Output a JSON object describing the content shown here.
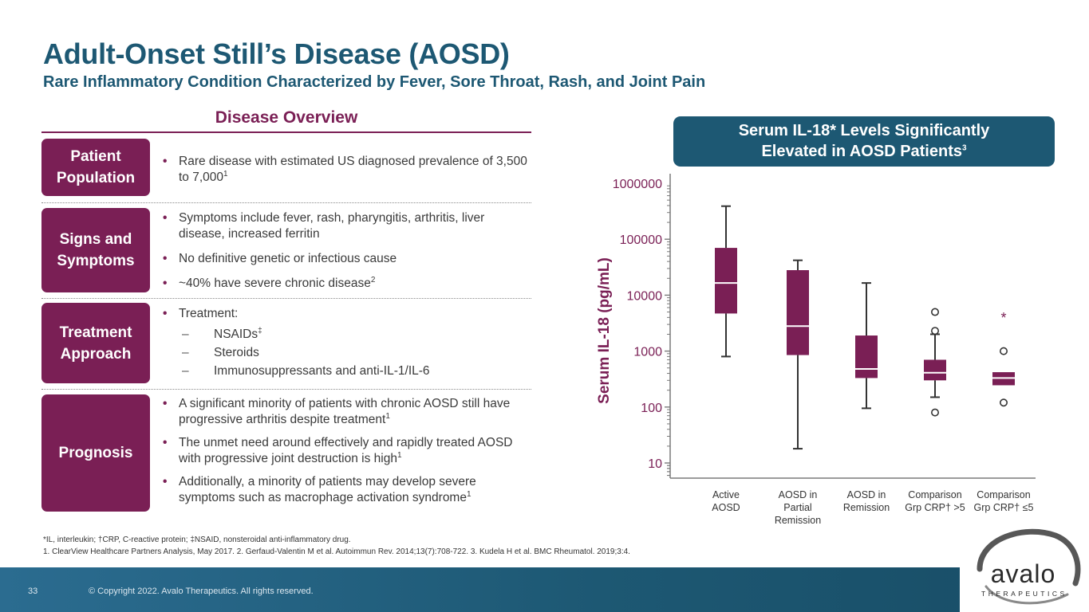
{
  "header": {
    "title": "Adult-Onset Still’s Disease (AOSD)",
    "subtitle": "Rare Inflammatory Condition Characterized by Fever, Sore Throat, Rash, and Joint Pain"
  },
  "overview": {
    "title": "Disease Overview",
    "sections": [
      {
        "label": "Patient\nPopulation",
        "bullets": [
          {
            "text": "Rare disease with estimated US diagnosed prevalence of 3,500 to 7,000",
            "sup": "1"
          }
        ]
      },
      {
        "label": "Signs and\nSymptoms",
        "bullets": [
          {
            "text": "Symptoms include fever, rash, pharyngitis,  arthritis, liver disease, increased ferritin",
            "sup": ""
          },
          {
            "text": "No definitive genetic or infectious cause",
            "sup": ""
          },
          {
            "text": "~40% have severe chronic disease",
            "sup": "2"
          }
        ]
      },
      {
        "label": "Treatment\nApproach",
        "bullets": [
          {
            "text": "Treatment:",
            "sup": ""
          },
          {
            "text": "NSAIDs",
            "sup": "‡",
            "sub": true
          },
          {
            "text": "Steroids",
            "sup": "",
            "sub": true
          },
          {
            "text": "Immunosuppressants and anti-IL-1/IL-6",
            "sup": "",
            "sub": true
          }
        ]
      },
      {
        "label": "Prognosis",
        "bullets": [
          {
            "text": "A significant minority of patients with chronic AOSD still have progressive arthritis despite treatment",
            "sup": "1"
          },
          {
            "text": "The unmet need around effectively and rapidly treated AOSD with progressive joint destruction is high",
            "sup": "1"
          },
          {
            "text": "Additionally, a minority of patients may develop severe symptoms such as macrophage activation syndrome",
            "sup": "1"
          }
        ]
      }
    ]
  },
  "chart_header": {
    "line1": "Serum IL-18* Levels Significantly",
    "line2": "Elevated in AOSD Patients",
    "sup": "3"
  },
  "chart_data": {
    "type": "box",
    "ylabel": "Serum IL-18 (pg/mL)",
    "yscale": "log",
    "ylim": [
      6,
      1000000
    ],
    "yticks": [
      10,
      100,
      1000,
      10000,
      100000,
      1000000
    ],
    "ytick_labels": [
      "10",
      "100",
      "1000",
      "10000",
      "100000",
      "1000000"
    ],
    "categories": [
      "Active\nAOSD",
      "AOSD in\nPartial\nRemission",
      "AOSD in\nRemission",
      "Comparison\nGrp CRP† >5",
      "Comparison\nGrp CRP† ≤5"
    ],
    "boxes": [
      {
        "whisker_low": 800,
        "q1": 4700,
        "median": 16500,
        "q3": 70000,
        "whisker_high": 390000,
        "outliers": []
      },
      {
        "whisker_low": 18,
        "q1": 850,
        "median": 2800,
        "q3": 28000,
        "whisker_high": 42000,
        "outliers": []
      },
      {
        "whisker_low": 95,
        "q1": 330,
        "median": 480,
        "q3": 1900,
        "whisker_high": 16500,
        "outliers": []
      },
      {
        "whisker_low": 150,
        "q1": 300,
        "median": 410,
        "q3": 700,
        "whisker_high": 2000,
        "outliers": [
          5000,
          2300,
          80
        ]
      },
      {
        "whisker_low": null,
        "q1": 245,
        "median": 330,
        "q3": 420,
        "whisker_high": null,
        "outliers": [
          1000,
          120
        ]
      }
    ],
    "annotations": [
      {
        "category_index": 4,
        "y": 4200,
        "text": "*"
      }
    ],
    "grid": false,
    "legend": "none",
    "colors": {
      "box": "#7a1f55",
      "median": "#ffffff",
      "axis": "#7a7a7a",
      "tick_label": "#7a1f55"
    }
  },
  "footnotes": {
    "line1": "*IL, interleukin; †CRP, C-reactive protein; ‡NSAID, nonsteroidal anti-inflammatory drug.",
    "line2": "1. ClearView Healthcare Partners Analysis, May 2017. 2. Gerfaud-Valentin M et al. Autoimmun Rev. 2014;13(7):708-722. 3. Kudela H et al. BMC Rheumatol. 2019;3:4."
  },
  "footer": {
    "page_number": "33",
    "copyright": "© Copyright 2022. Avalo Therapeutics. All rights reserved."
  },
  "logo": {
    "word": "avalo",
    "tagline": "THERAPEUTICS"
  },
  "colors": {
    "primary": "#1d5873",
    "accent": "#7a1f55"
  }
}
